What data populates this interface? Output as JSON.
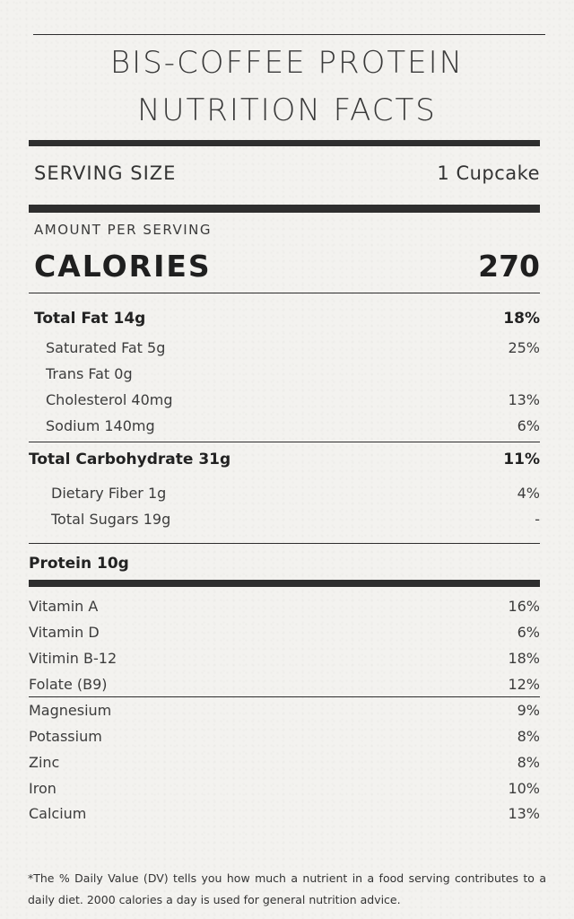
{
  "title_line1": "BIS-COFFEE PROTEIN",
  "title_line2": "NUTRITION FACTS",
  "serving": {
    "label": "SERVING SIZE",
    "value": "1 Cupcake"
  },
  "amount_per_serving": "AMOUNT PER SERVING",
  "calories": {
    "label": "CALORIES",
    "value": "270"
  },
  "fat": {
    "total": {
      "label": "Total Fat 14g",
      "dv": "18%"
    },
    "saturated": {
      "label": "Saturated Fat 5g",
      "dv": "25%"
    },
    "trans": {
      "label": "Trans Fat 0g",
      "dv": ""
    },
    "cholesterol": {
      "label": "Cholesterol 40mg",
      "dv": "13%"
    },
    "sodium": {
      "label": "Sodium 140mg",
      "dv": "6%"
    }
  },
  "carb": {
    "total": {
      "label": "Total Carbohydrate 31g",
      "dv": "11%"
    },
    "fiber": {
      "label": "Dietary Fiber 1g",
      "dv": "4%"
    },
    "sugars": {
      "label": "Total Sugars 19g",
      "dv": "-"
    }
  },
  "protein": {
    "label": "Protein 10g"
  },
  "vitamins": [
    {
      "label": "Vitamin A",
      "dv": "16%"
    },
    {
      "label": "Vitamin D",
      "dv": "6%"
    },
    {
      "label": "Vitimin B-12",
      "dv": "18%"
    },
    {
      "label": "Folate (B9)",
      "dv": "12%"
    }
  ],
  "minerals": [
    {
      "label": "Magnesium",
      "dv": "9%"
    },
    {
      "label": "Potassium",
      "dv": "8%"
    },
    {
      "label": "Zinc",
      "dv": "8%"
    },
    {
      "label": "Iron",
      "dv": "10%"
    },
    {
      "label": "Calcium",
      "dv": "13%"
    }
  ],
  "footnote": "*The % Daily Value (DV) tells you how much a nutrient in a food serving contributes to a daily diet. 2000 calories a day is used for general nutrition advice."
}
